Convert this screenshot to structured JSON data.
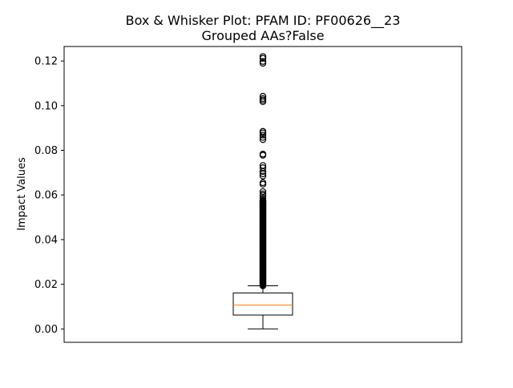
{
  "chart_data": {
    "type": "box",
    "title_line1": "Box & Whisker Plot: PFAM ID: PF00626__23",
    "title_line2": "Grouped AAs?False",
    "xlabel": "",
    "ylabel": "Impact Values",
    "ylim": [
      -0.006,
      0.1265
    ],
    "yticks": [
      0.0,
      0.02,
      0.04,
      0.06,
      0.08,
      0.1,
      0.12
    ],
    "ytick_labels": [
      "0.00",
      "0.02",
      "0.04",
      "0.06",
      "0.08",
      "0.10",
      "0.12"
    ],
    "show_xticks": false,
    "grid": false,
    "box": {
      "whisker_low": 0.0,
      "q1": 0.0062,
      "median": 0.0107,
      "q3": 0.0161,
      "whisker_high": 0.0193
    },
    "outliers_dense_range": [
      0.0193,
      0.0575
    ],
    "outliers": [
      0.0575,
      0.0585,
      0.0598,
      0.0605,
      0.0615,
      0.0648,
      0.0655,
      0.0685,
      0.0695,
      0.0705,
      0.0722,
      0.0732,
      0.0778,
      0.0783,
      0.0848,
      0.0858,
      0.0868,
      0.0878,
      0.0885,
      0.1018,
      0.1025,
      0.1032,
      0.1042,
      0.119,
      0.1198,
      0.1212,
      0.122
    ],
    "colors": {
      "box": "#000000",
      "median": "#ff7f0e",
      "outlier": "#000000"
    }
  }
}
